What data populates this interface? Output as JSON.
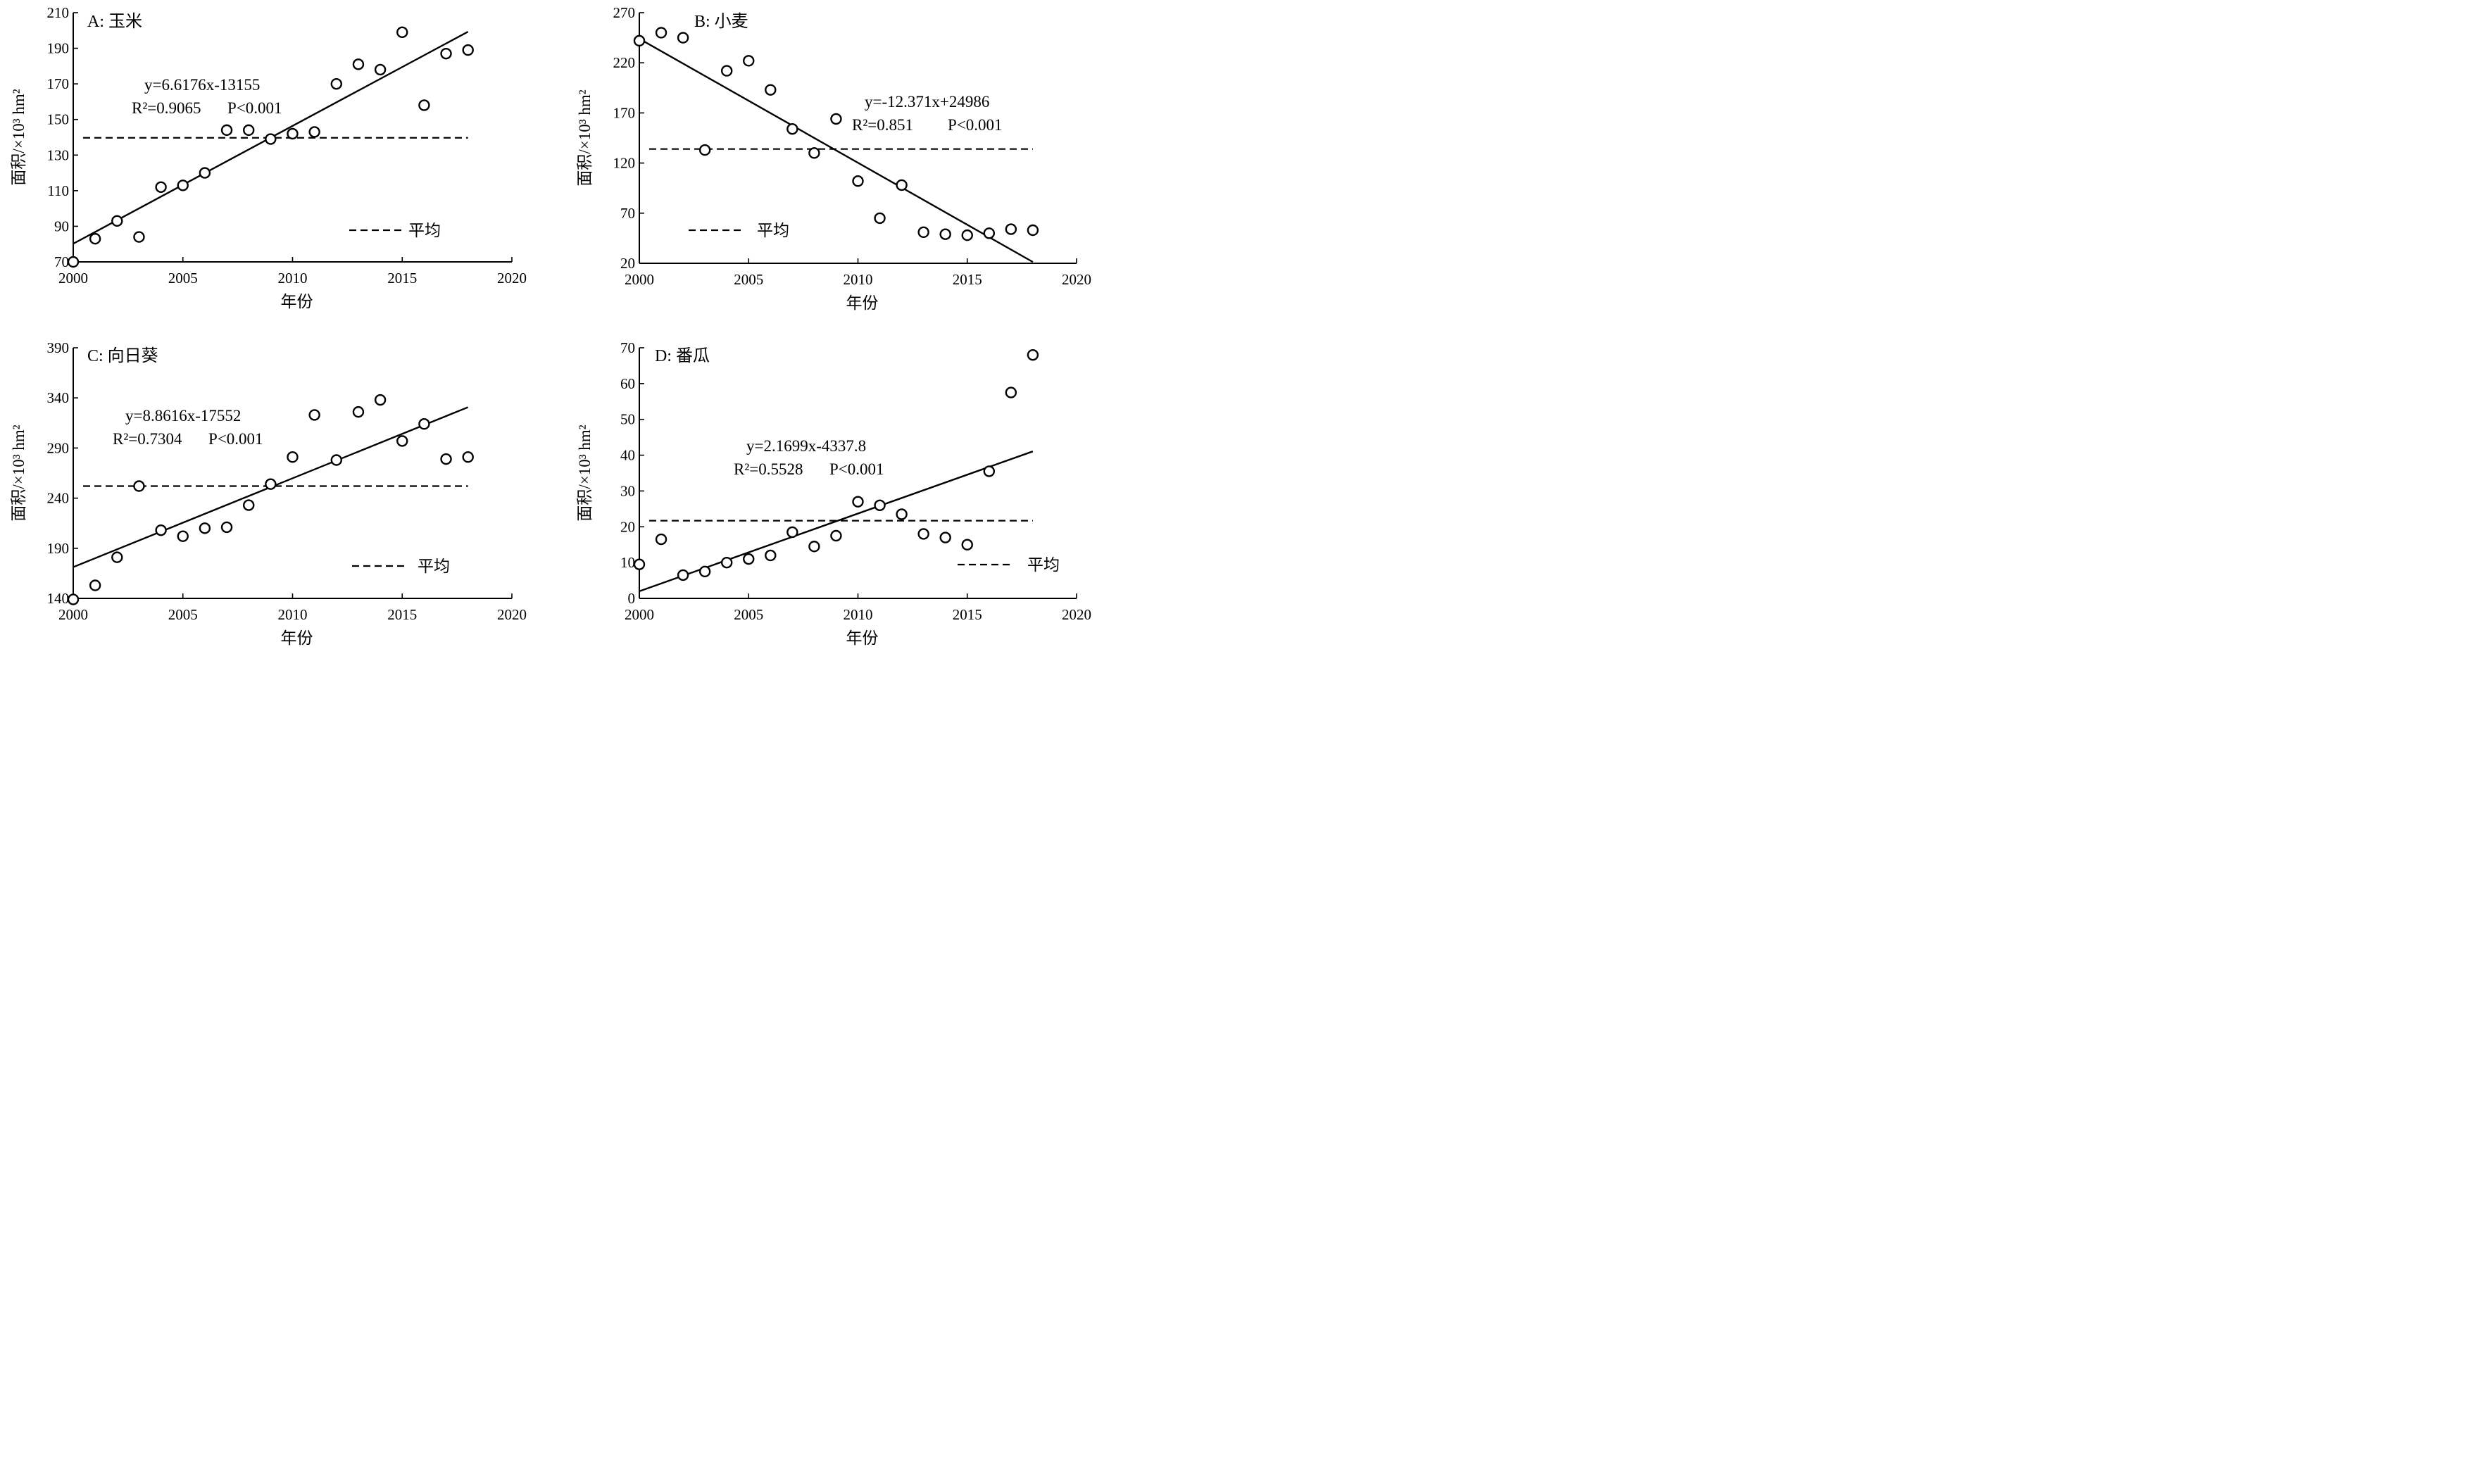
{
  "chart_data": [
    {
      "id": "A",
      "type": "scatter",
      "title": "A: 玉米",
      "xlabel": "年份",
      "ylabel": "面积/×10³ hm²",
      "xlim": [
        2000,
        2020
      ],
      "ylim": [
        70,
        210
      ],
      "xticks": [
        2000,
        2005,
        2010,
        2015,
        2020
      ],
      "yticks": [
        70,
        90,
        110,
        130,
        150,
        170,
        190,
        210
      ],
      "x": [
        2000,
        2001,
        2002,
        2003,
        2004,
        2005,
        2006,
        2007,
        2008,
        2009,
        2010,
        2011,
        2012,
        2013,
        2014,
        2015,
        2016,
        2017,
        2018
      ],
      "values": [
        70,
        83,
        93,
        84,
        112,
        113,
        120,
        144,
        144,
        139,
        142,
        143,
        170,
        181,
        178,
        199,
        158,
        187,
        189
      ],
      "fit": {
        "slope": 6.6176,
        "intercept": -13155,
        "x_range": [
          2000,
          2018
        ]
      },
      "mean": 139.7,
      "equation": "y=6.6176x-13155",
      "r2_label": "R²=0.9065",
      "p_label": "P<0.001",
      "legend_label": "平均",
      "grid": false
    },
    {
      "id": "B",
      "type": "scatter",
      "title": "B: 小麦",
      "xlabel": "年份",
      "ylabel": "面积/×10³ hm²",
      "xlim": [
        2000,
        2020
      ],
      "ylim": [
        20,
        270
      ],
      "xticks": [
        2000,
        2005,
        2010,
        2015,
        2020
      ],
      "yticks": [
        20,
        70,
        120,
        170,
        220,
        270
      ],
      "x": [
        2000,
        2001,
        2002,
        2003,
        2004,
        2005,
        2006,
        2007,
        2008,
        2009,
        2010,
        2011,
        2012,
        2013,
        2014,
        2015,
        2016,
        2017,
        2018
      ],
      "values": [
        242,
        250,
        245,
        133,
        212,
        222,
        193,
        154,
        130,
        164,
        102,
        65,
        98,
        51,
        49,
        48,
        50,
        54,
        53
      ],
      "fit": {
        "slope": -12.371,
        "intercept": 24986,
        "x_range": [
          2000,
          2018
        ]
      },
      "mean": 134,
      "equation": "y=-12.371x+24986",
      "r2_label": "R²=0.851",
      "p_label": "P<0.001",
      "legend_label": "平均",
      "grid": false
    },
    {
      "id": "C",
      "type": "scatter",
      "title": "C: 向日葵",
      "xlabel": "年份",
      "ylabel": "面积/×10³ hm²",
      "xlim": [
        2000,
        2020
      ],
      "ylim": [
        140,
        390
      ],
      "xticks": [
        2000,
        2005,
        2010,
        2015,
        2020
      ],
      "yticks": [
        140,
        190,
        240,
        290,
        340,
        390
      ],
      "x": [
        2000,
        2001,
        2002,
        2003,
        2004,
        2005,
        2006,
        2007,
        2008,
        2009,
        2010,
        2011,
        2012,
        2013,
        2014,
        2015,
        2016,
        2017,
        2018
      ],
      "values": [
        139,
        153,
        181,
        252,
        208,
        202,
        210,
        211,
        233,
        254,
        281,
        323,
        278,
        326,
        338,
        297,
        314,
        279,
        281
      ],
      "fit": {
        "slope": 8.8616,
        "intercept": -17552,
        "x_range": [
          2000,
          2018
        ]
      },
      "mean": 252,
      "equation": "y=8.8616x-17552",
      "r2_label": "R²=0.7304",
      "p_label": "P<0.001",
      "legend_label": "平均",
      "grid": false
    },
    {
      "id": "D",
      "type": "scatter",
      "title": "D: 番瓜",
      "xlabel": "年份",
      "ylabel": "面积/×10³ hm²",
      "xlim": [
        2000,
        2020
      ],
      "ylim": [
        0,
        70
      ],
      "xticks": [
        2000,
        2005,
        2010,
        2015,
        2020
      ],
      "yticks": [
        0,
        10,
        20,
        30,
        40,
        50,
        60,
        70
      ],
      "x": [
        2000,
        2001,
        2002,
        2003,
        2004,
        2005,
        2006,
        2007,
        2008,
        2009,
        2010,
        2011,
        2012,
        2013,
        2014,
        2015,
        2016,
        2017,
        2018
      ],
      "values": [
        9.5,
        16.5,
        6.5,
        7.5,
        10,
        11,
        12,
        18.5,
        14.5,
        17.5,
        27,
        26,
        23.5,
        18,
        17,
        15,
        35.5,
        57.5,
        68
      ],
      "fit": {
        "slope": 2.1699,
        "intercept": -4337.8,
        "x_range": [
          2000,
          2018
        ]
      },
      "mean": 21.7,
      "equation": "y=2.1699x-4337.8",
      "r2_label": "R²=0.5528",
      "p_label": "P<0.001",
      "legend_label": "平均",
      "grid": false
    }
  ]
}
